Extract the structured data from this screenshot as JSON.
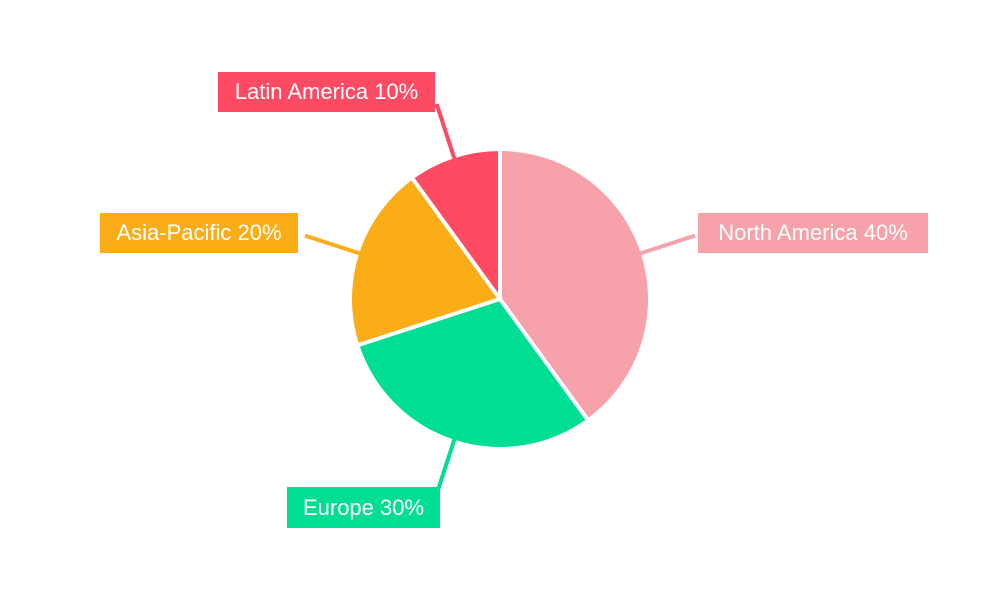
{
  "chart_data": {
    "type": "pie",
    "title": "",
    "background_color": "#FFFFFF",
    "label_text_color": "#FFFFFF",
    "gap_color": "#FFFFFF",
    "start_angle_deg": 0,
    "direction": "clockwise",
    "legend_position": "callout-labels",
    "categories": [
      "North America",
      "Europe",
      "Asia-Pacific",
      "Latin America"
    ],
    "values": [
      40,
      30,
      20,
      10
    ],
    "segments": [
      {
        "id": "north-america",
        "label": "North America",
        "value": 40,
        "percent_text": "40%",
        "label_text": "North America 40%",
        "color": "#F7A2AA"
      },
      {
        "id": "europe",
        "label": "Europe",
        "value": 30,
        "percent_text": "30%",
        "label_text": "Europe 30%",
        "color": "#00DE96"
      },
      {
        "id": "asia-pacific",
        "label": "Asia-Pacific",
        "value": 20,
        "percent_text": "20%",
        "label_text": "Asia-Pacific 20%",
        "color": "#FBAD18"
      },
      {
        "id": "latin-america",
        "label": "Latin America",
        "value": 10,
        "percent_text": "10%",
        "label_text": "Latin America 10%",
        "color": "#FF4A63"
      }
    ]
  }
}
